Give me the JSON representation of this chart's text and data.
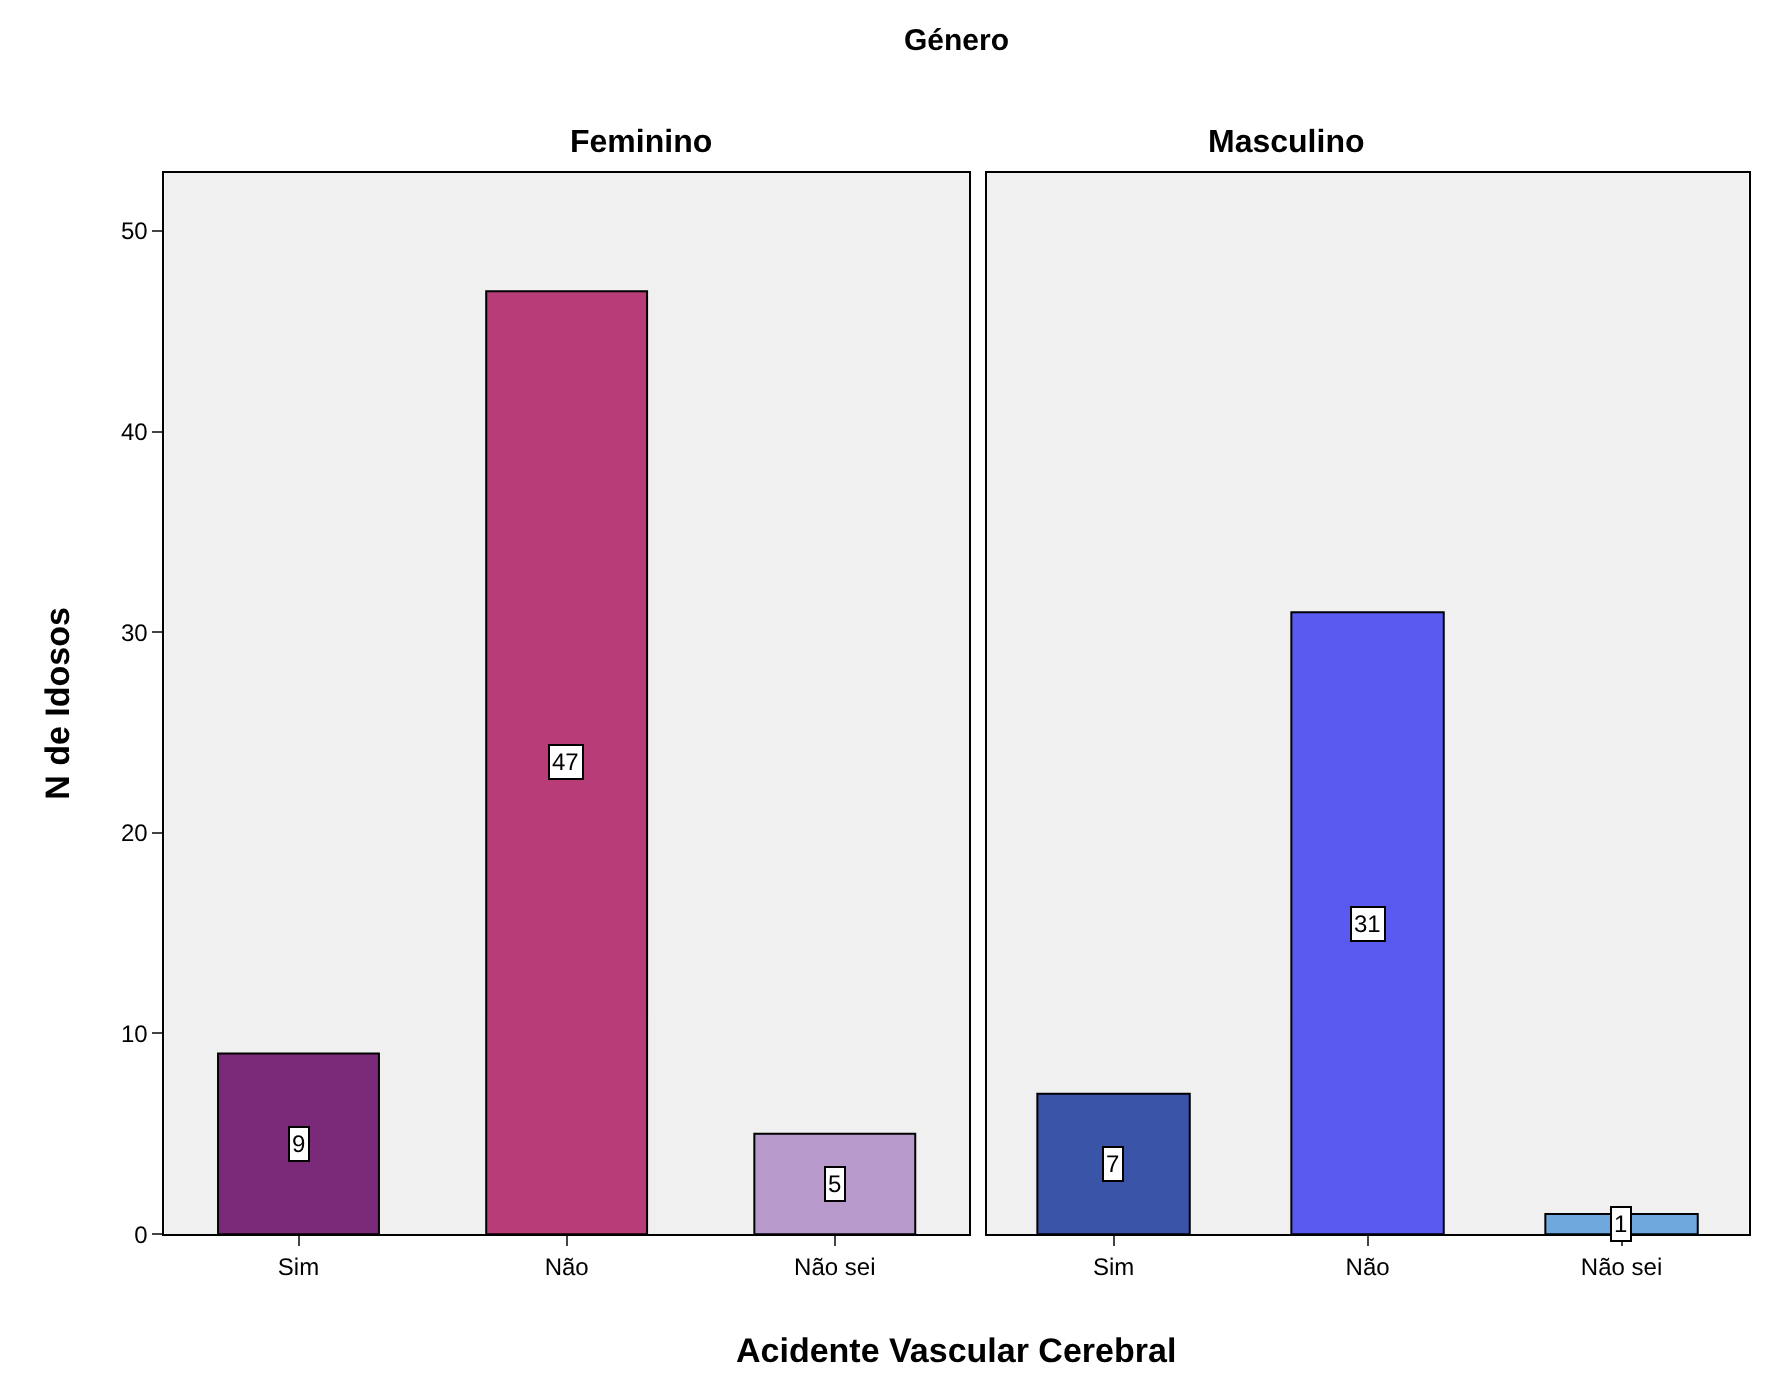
{
  "chart_data": [
    {
      "type": "bar",
      "title": "Feminino",
      "xlabel": "Acidente Vascular Cerebral",
      "ylabel": "N de Idosos",
      "annotations": [
        "Género"
      ],
      "categories": [
        "Sim",
        "Não",
        "Não sei"
      ],
      "values": [
        9,
        47,
        5
      ],
      "colors": [
        "#7b2a7a",
        "#b83c78",
        "#b899cc"
      ],
      "ylim": [
        0,
        52.9
      ],
      "yticks": [
        0,
        10,
        20,
        30,
        40,
        50
      ],
      "grid": false,
      "data_labels": true
    },
    {
      "type": "bar",
      "title": "Masculino",
      "categories": [
        "Sim",
        "Não",
        "Não sei"
      ],
      "values": [
        7,
        31,
        1
      ],
      "colors": [
        "#3a54a8",
        "#5a5af0",
        "#6fa8dc"
      ],
      "ylim": [
        0,
        52.9
      ],
      "yticks": [
        0,
        10,
        20,
        30,
        40,
        50
      ],
      "tick_labels": "x",
      "grid": false,
      "data_labels": true
    }
  ]
}
